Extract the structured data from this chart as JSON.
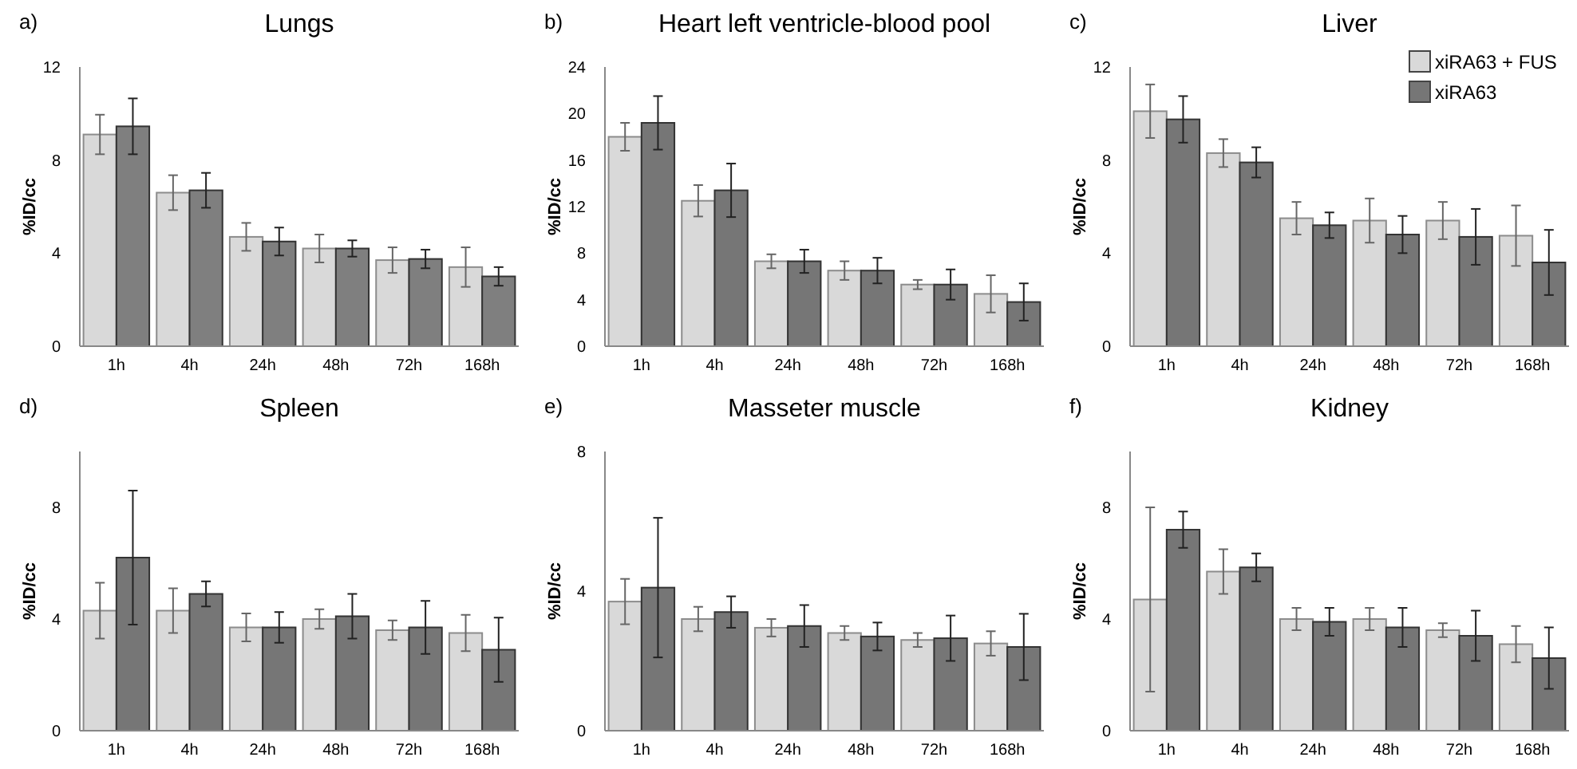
{
  "chart_data": [
    {
      "type": "bar",
      "title": "Lungs",
      "annotations": [
        "a)"
      ],
      "ylabel": "%ID/cc",
      "categories": [
        "1h",
        "4h",
        "24h",
        "48h",
        "72h",
        "168h"
      ],
      "ylim": [
        0,
        12
      ],
      "yticks": [
        0,
        4,
        8,
        12
      ],
      "grid": false,
      "legend": false,
      "series": [
        {
          "color": "#d9d9d9",
          "values": [
            9.1,
            6.6,
            4.7,
            4.2,
            3.7,
            3.4
          ],
          "errors": [
            0.85,
            0.75,
            0.6,
            0.6,
            0.55,
            0.85
          ]
        },
        {
          "color": "#7f7f7f",
          "values": [
            9.45,
            6.7,
            4.5,
            4.2,
            3.75,
            3.0
          ],
          "errors": [
            1.2,
            0.75,
            0.6,
            0.35,
            0.4,
            0.4
          ]
        }
      ]
    },
    {
      "type": "bar",
      "title": "Heart left ventricle-blood pool",
      "annotations": [
        "b)"
      ],
      "ylabel": "%ID/cc",
      "categories": [
        "1h",
        "4h",
        "24h",
        "48h",
        "72h",
        "168h"
      ],
      "ylim": [
        0,
        24
      ],
      "yticks": [
        0,
        4,
        8,
        12,
        16,
        20,
        24
      ],
      "grid": false,
      "legend": false,
      "series": [
        {
          "color": "#d9d9d9",
          "values": [
            18,
            12.5,
            7.3,
            6.5,
            5.3,
            4.5
          ],
          "errors": [
            1.2,
            1.35,
            0.6,
            0.8,
            0.4,
            1.6
          ]
        },
        {
          "color": "#767676",
          "values": [
            19.2,
            13.4,
            7.3,
            6.5,
            5.3,
            3.8
          ],
          "errors": [
            2.3,
            2.3,
            1.0,
            1.1,
            1.3,
            1.6
          ]
        }
      ]
    },
    {
      "type": "bar",
      "title": "Liver",
      "annotations": [
        "c)"
      ],
      "ylabel": "%ID/cc",
      "categories": [
        "1h",
        "4h",
        "24h",
        "48h",
        "72h",
        "168h"
      ],
      "ylim": [
        0,
        12
      ],
      "yticks": [
        0,
        4,
        8,
        12
      ],
      "grid": false,
      "legend": "top right",
      "series": [
        {
          "name": "xiRA63 + FUS",
          "color": "#d9d9d9",
          "values": [
            10.1,
            8.3,
            5.5,
            5.4,
            5.4,
            4.75
          ],
          "errors": [
            1.15,
            0.6,
            0.7,
            0.95,
            0.8,
            1.3
          ]
        },
        {
          "name": "xiRA63",
          "color": "#767676",
          "values": [
            9.75,
            7.9,
            5.2,
            4.8,
            4.7,
            3.6
          ],
          "errors": [
            1.0,
            0.65,
            0.55,
            0.8,
            1.2,
            1.4
          ]
        }
      ]
    },
    {
      "type": "bar",
      "title": "Spleen",
      "annotations": [
        "d)"
      ],
      "ylabel": "%ID/cc",
      "categories": [
        "1h",
        "4h",
        "24h",
        "48h",
        "72h",
        "168h"
      ],
      "ylim": [
        0,
        10
      ],
      "yticks": [
        0,
        4,
        8
      ],
      "grid": false,
      "legend": false,
      "series": [
        {
          "color": "#d9d9d9",
          "values": [
            4.3,
            4.3,
            3.7,
            4.0,
            3.6,
            3.5
          ],
          "errors": [
            1.0,
            0.8,
            0.5,
            0.35,
            0.35,
            0.65
          ]
        },
        {
          "color": "#767676",
          "values": [
            6.2,
            4.9,
            3.7,
            4.1,
            3.7,
            2.9
          ],
          "errors": [
            2.4,
            0.45,
            0.55,
            0.8,
            0.95,
            1.15
          ]
        }
      ]
    },
    {
      "type": "bar",
      "title": "Masseter muscle",
      "annotations": [
        "e)"
      ],
      "ylabel": "%ID/cc",
      "categories": [
        "1h",
        "4h",
        "24h",
        "48h",
        "72h",
        "168h"
      ],
      "ylim": [
        0,
        8
      ],
      "yticks": [
        0,
        4,
        8
      ],
      "grid": false,
      "legend": false,
      "series": [
        {
          "color": "#d9d9d9",
          "values": [
            3.7,
            3.2,
            2.95,
            2.8,
            2.6,
            2.5
          ],
          "errors": [
            0.65,
            0.35,
            0.25,
            0.2,
            0.2,
            0.35
          ]
        },
        {
          "color": "#767676",
          "values": [
            4.1,
            3.4,
            3.0,
            2.7,
            2.65,
            2.4
          ],
          "errors": [
            2.0,
            0.45,
            0.6,
            0.4,
            0.65,
            0.95
          ]
        }
      ]
    },
    {
      "type": "bar",
      "title": "Kidney",
      "annotations": [
        "f)"
      ],
      "ylabel": "%ID/cc",
      "categories": [
        "1h",
        "4h",
        "24h",
        "48h",
        "72h",
        "168h"
      ],
      "ylim": [
        0,
        10
      ],
      "yticks": [
        0,
        4,
        8
      ],
      "grid": false,
      "legend": false,
      "series": [
        {
          "color": "#d9d9d9",
          "values": [
            4.7,
            5.7,
            4.0,
            4.0,
            3.6,
            3.1
          ],
          "errors": [
            3.3,
            0.8,
            0.4,
            0.4,
            0.25,
            0.65
          ]
        },
        {
          "color": "#767676",
          "values": [
            7.2,
            5.85,
            3.9,
            3.7,
            3.4,
            2.6
          ],
          "errors": [
            0.65,
            0.5,
            0.5,
            0.7,
            0.9,
            1.1
          ]
        }
      ]
    }
  ]
}
